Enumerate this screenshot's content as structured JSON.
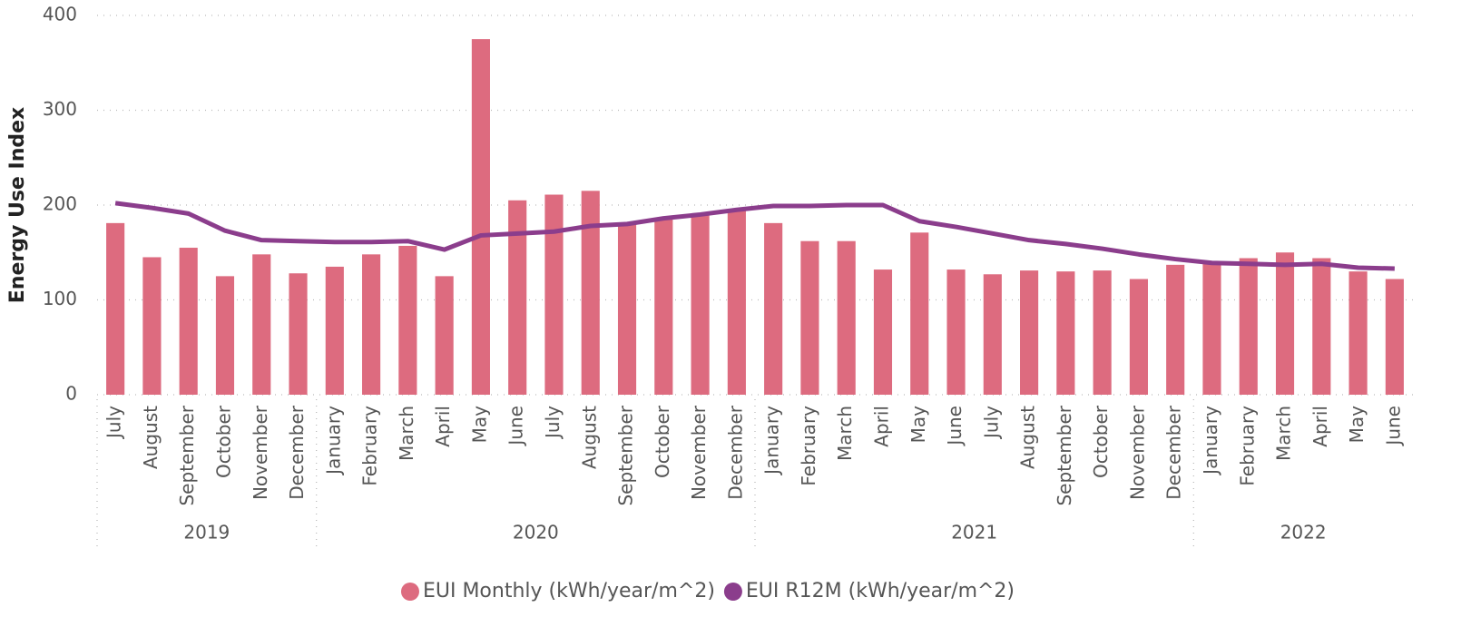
{
  "chart_data": {
    "type": "bar-line",
    "y_label": "Energy Use Index",
    "categories": [
      "July",
      "August",
      "September",
      "October",
      "November",
      "December",
      "January",
      "February",
      "March",
      "April",
      "May",
      "June",
      "July",
      "August",
      "September",
      "October",
      "November",
      "December",
      "January",
      "February",
      "March",
      "April",
      "May",
      "June",
      "July",
      "August",
      "September",
      "October",
      "November",
      "December",
      "January",
      "February",
      "March",
      "April",
      "May",
      "June"
    ],
    "category_groups": [
      "2019",
      "2019",
      "2019",
      "2019",
      "2019",
      "2019",
      "2020",
      "2020",
      "2020",
      "2020",
      "2020",
      "2020",
      "2020",
      "2020",
      "2020",
      "2020",
      "2020",
      "2020",
      "2021",
      "2021",
      "2021",
      "2021",
      "2021",
      "2021",
      "2021",
      "2021",
      "2021",
      "2021",
      "2021",
      "2021",
      "2022",
      "2022",
      "2022",
      "2022",
      "2022",
      "2022"
    ],
    "series": [
      {
        "name": "EUI Monthly (kWh/year/m^2)",
        "type": "bar",
        "color": "#dd6b7f",
        "values": [
          181,
          145,
          155,
          125,
          148,
          128,
          135,
          148,
          157,
          125,
          375,
          205,
          211,
          215,
          180,
          186,
          189,
          196,
          181,
          162,
          162,
          132,
          171,
          132,
          127,
          131,
          130,
          131,
          122,
          137,
          138,
          144,
          150,
          144,
          130,
          122
        ]
      },
      {
        "name": "EUI R12M (kWh/year/m^2)",
        "type": "line",
        "color": "#8b3d8c",
        "values": [
          202,
          197,
          191,
          173,
          163,
          162,
          161,
          161,
          162,
          153,
          168,
          170,
          172,
          178,
          180,
          186,
          190,
          195,
          199,
          199,
          200,
          200,
          183,
          177,
          170,
          163,
          159,
          154,
          148,
          143,
          139,
          138,
          137,
          138,
          134,
          133
        ]
      }
    ],
    "ylim": [
      0,
      400
    ],
    "yticks": [
      0,
      100,
      200,
      300,
      400
    ],
    "grid": true,
    "legend": "bottom"
  }
}
